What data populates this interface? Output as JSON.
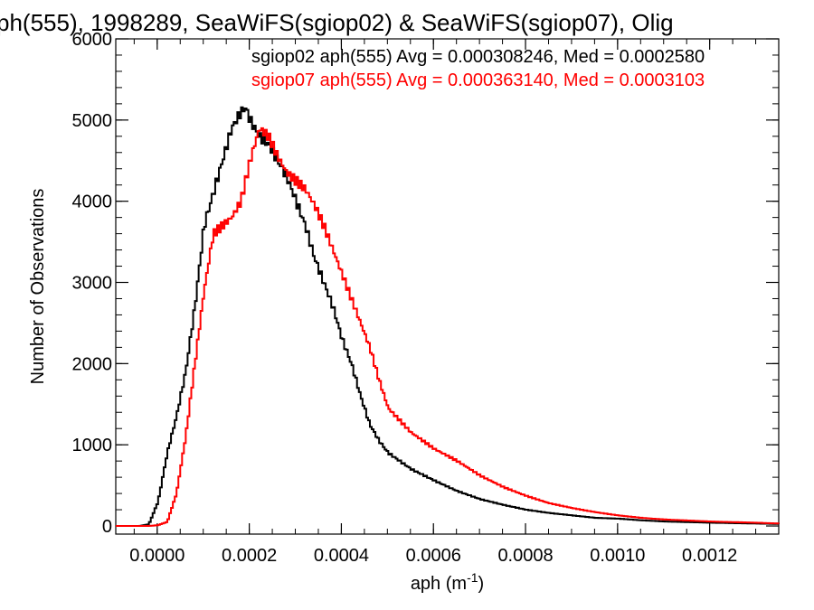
{
  "chart_data": {
    "type": "line",
    "title": "ph(555), 1998289, SeaWiFS(sgiop02) & SeaWiFS(sgiop07), Olig",
    "xlabel": "aph (m",
    "xlabel_sup": "-1",
    "xlabel_close": ")",
    "ylabel": "Number of Observations",
    "xlim": [
      -9e-05,
      0.00135
    ],
    "ylim": [
      -100,
      6000
    ],
    "xticks": [
      {
        "value": 0.0,
        "label": "0.0000"
      },
      {
        "value": 0.0002,
        "label": "0.0002"
      },
      {
        "value": 0.0004,
        "label": "0.0004"
      },
      {
        "value": 0.0006,
        "label": "0.0006"
      },
      {
        "value": 0.0008,
        "label": "0.0008"
      },
      {
        "value": 0.001,
        "label": "0.0010"
      },
      {
        "value": 0.0012,
        "label": "0.0012"
      }
    ],
    "yticks": [
      {
        "value": 0,
        "label": "0"
      },
      {
        "value": 1000,
        "label": "1000"
      },
      {
        "value": 2000,
        "label": "2000"
      },
      {
        "value": 3000,
        "label": "3000"
      },
      {
        "value": 4000,
        "label": "4000"
      },
      {
        "value": 5000,
        "label": "5000"
      },
      {
        "value": 6000,
        "label": "6000"
      }
    ],
    "grid": false,
    "legend_position": "top-right",
    "series": [
      {
        "label": "sgiop02 aph(555) Avg = 0.000308246, Med = 0.0002580",
        "color": "#000000",
        "x": [
          -4e-05,
          -2e-05,
          0.0,
          2e-05,
          4e-05,
          6e-05,
          8e-05,
          0.0001,
          0.00012,
          0.00014,
          0.00016,
          0.00018,
          0.00019,
          0.0002,
          0.00022,
          0.00024,
          0.00026,
          0.00028,
          0.0003,
          0.00032,
          0.00034,
          0.00036,
          0.00038,
          0.0004,
          0.00042,
          0.00044,
          0.00046,
          0.00048,
          0.0005,
          0.00055,
          0.0006,
          0.00065,
          0.0007,
          0.00075,
          0.0008,
          0.00085,
          0.0009,
          0.00095,
          0.001,
          0.00105,
          0.0011,
          0.0012,
          0.0013,
          0.00135
        ],
        "y": [
          0,
          20,
          300,
          900,
          1350,
          1900,
          2700,
          3700,
          4100,
          4500,
          4900,
          5100,
          5150,
          5000,
          4800,
          4700,
          4500,
          4300,
          4000,
          3700,
          3300,
          3000,
          2700,
          2300,
          2000,
          1600,
          1250,
          1050,
          900,
          700,
          560,
          430,
          330,
          260,
          200,
          160,
          130,
          100,
          90,
          70,
          55,
          40,
          30,
          25
        ]
      },
      {
        "label": "sgiop07 aph(555) Avg = 0.000363140, Med = 0.0003103",
        "color": "#ff0000",
        "x": [
          -2e-05,
          0.0,
          2e-05,
          4e-05,
          6e-05,
          8e-05,
          0.0001,
          0.00012,
          0.00014,
          0.00016,
          0.00018,
          0.0002,
          0.00022,
          0.00024,
          0.00026,
          0.00028,
          0.0003,
          0.00032,
          0.00034,
          0.00036,
          0.00038,
          0.0004,
          0.00042,
          0.00044,
          0.00046,
          0.00048,
          0.0005,
          0.00055,
          0.0006,
          0.00065,
          0.0007,
          0.00075,
          0.0008,
          0.00085,
          0.0009,
          0.00095,
          0.001,
          0.00105,
          0.0011,
          0.0012,
          0.0013,
          0.00135
        ],
        "y": [
          0,
          10,
          50,
          400,
          1100,
          2000,
          2900,
          3600,
          3700,
          3800,
          4000,
          4500,
          4900,
          4800,
          4550,
          4350,
          4250,
          4150,
          3950,
          3700,
          3400,
          3100,
          2800,
          2500,
          2200,
          1800,
          1450,
          1150,
          950,
          800,
          620,
          480,
          370,
          280,
          220,
          170,
          130,
          100,
          80,
          55,
          40,
          30
        ]
      }
    ]
  }
}
